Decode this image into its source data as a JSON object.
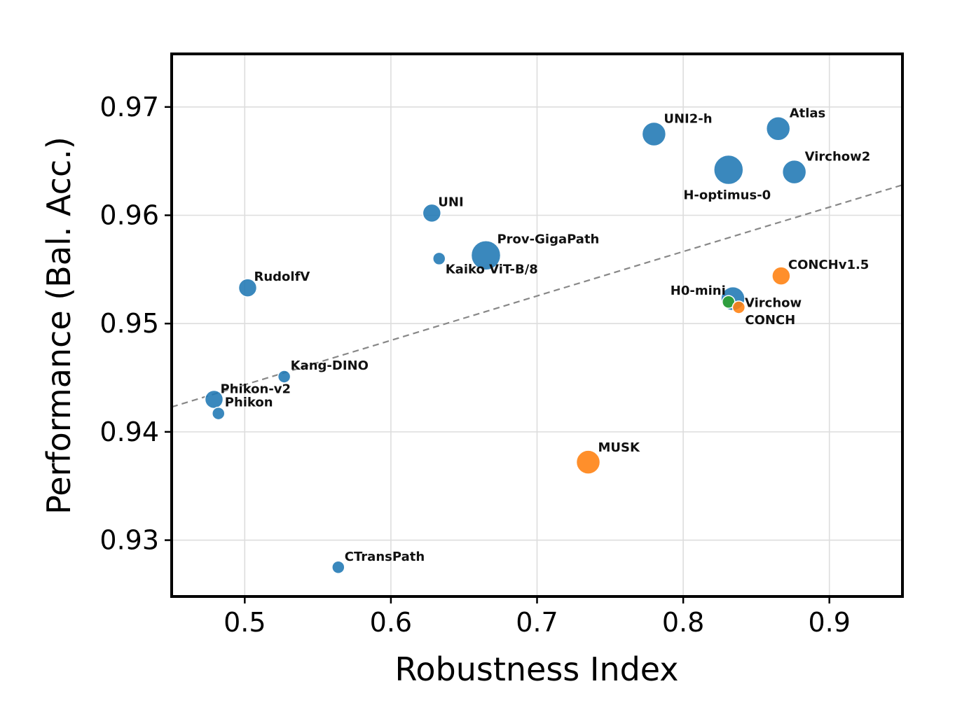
{
  "chart_data": {
    "type": "scatter",
    "title": "",
    "xlabel": "Robustness Index",
    "ylabel": "Performance (Bal. Acc.)",
    "xlim": [
      0.45,
      0.95
    ],
    "ylim": [
      0.9248,
      0.9749
    ],
    "xticks": [
      0.5,
      0.6,
      0.7,
      0.8,
      0.9
    ],
    "yticks": [
      0.93,
      0.94,
      0.95,
      0.96,
      0.97
    ],
    "xtick_labels": [
      "0.5",
      "0.6",
      "0.7",
      "0.8",
      "0.9"
    ],
    "ytick_labels": [
      "0.93",
      "0.94",
      "0.95",
      "0.96",
      "0.97"
    ],
    "grid": true,
    "trend_line": {
      "style": "dashed",
      "color": "#888888",
      "points": [
        [
          0.45,
          0.9423
        ],
        [
          0.95,
          0.9628
        ]
      ]
    },
    "colors": {
      "blue": "#1f77b4",
      "orange": "#ff7f0e",
      "green": "#2ca02c"
    },
    "points": [
      {
        "label": "UNI2-h",
        "x": 0.78,
        "y": 0.9675,
        "size": 3,
        "color": "blue",
        "anchor": "start",
        "dx": 14,
        "dy": -16
      },
      {
        "label": "Atlas",
        "x": 0.865,
        "y": 0.968,
        "size": 3,
        "color": "blue",
        "anchor": "start",
        "dx": 16,
        "dy": -16
      },
      {
        "label": "H-optimus-0",
        "x": 0.831,
        "y": 0.9642,
        "size": 4,
        "color": "blue",
        "anchor": "middle",
        "dx": -2,
        "dy": 42
      },
      {
        "label": "Virchow2",
        "x": 0.876,
        "y": 0.964,
        "size": 3,
        "color": "blue",
        "anchor": "start",
        "dx": 15,
        "dy": -16
      },
      {
        "label": "UNI",
        "x": 0.628,
        "y": 0.9602,
        "size": 2,
        "color": "blue",
        "anchor": "start",
        "dx": 9,
        "dy": -10
      },
      {
        "label": "Prov-GigaPath",
        "x": 0.665,
        "y": 0.9563,
        "size": 4,
        "color": "blue",
        "anchor": "start",
        "dx": 16,
        "dy": -17
      },
      {
        "label": "Kaiko ViT-B/8",
        "x": 0.633,
        "y": 0.956,
        "size": 1,
        "color": "blue",
        "anchor": "start",
        "dx": 9,
        "dy": 21
      },
      {
        "label": "RudolfV",
        "x": 0.502,
        "y": 0.9533,
        "size": 2,
        "color": "blue",
        "anchor": "start",
        "dx": 9,
        "dy": -10
      },
      {
        "label": "CONCHv1.5",
        "x": 0.867,
        "y": 0.9544,
        "size": 2,
        "color": "orange",
        "anchor": "start",
        "dx": 10,
        "dy": -10
      },
      {
        "label": "Virchow",
        "x": 0.834,
        "y": 0.9523,
        "size": 3,
        "color": "blue",
        "anchor": "start",
        "dx": 17,
        "dy": 12
      },
      {
        "label": "H0-mini",
        "x": 0.831,
        "y": 0.952,
        "size": 1,
        "color": "green",
        "anchor": "end",
        "dx": -4,
        "dy": -10
      },
      {
        "label": "CONCH",
        "x": 0.838,
        "y": 0.9515,
        "size": 1,
        "color": "orange",
        "anchor": "start",
        "dx": 9,
        "dy": 24
      },
      {
        "label": "Kang-DINO",
        "x": 0.527,
        "y": 0.9451,
        "size": 1,
        "color": "blue",
        "anchor": "start",
        "dx": 9,
        "dy": -10
      },
      {
        "label": "Phikon-v2",
        "x": 0.479,
        "y": 0.943,
        "size": 2,
        "color": "blue",
        "anchor": "start",
        "dx": 9,
        "dy": -9
      },
      {
        "label": "Phikon",
        "x": 0.482,
        "y": 0.9417,
        "size": 1,
        "color": "blue",
        "anchor": "start",
        "dx": 9,
        "dy": -10
      },
      {
        "label": "MUSK",
        "x": 0.735,
        "y": 0.9372,
        "size": 3,
        "color": "orange",
        "anchor": "start",
        "dx": 14,
        "dy": -15
      },
      {
        "label": "CTransPath",
        "x": 0.564,
        "y": 0.9275,
        "size": 1,
        "color": "blue",
        "anchor": "start",
        "dx": 9,
        "dy": -9
      }
    ]
  }
}
